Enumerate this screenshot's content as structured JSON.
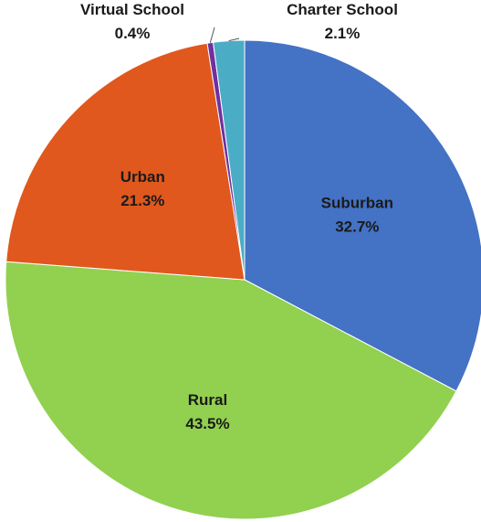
{
  "chart_data": {
    "type": "pie",
    "title": "",
    "slices": [
      {
        "label": "Suburban",
        "value": 32.7,
        "value_label": "32.7%",
        "color": "#4472c4",
        "label_position": "inside"
      },
      {
        "label": "Rural",
        "value": 43.5,
        "value_label": "43.5%",
        "color": "#92d050",
        "label_position": "inside"
      },
      {
        "label": "Urban",
        "value": 21.3,
        "value_label": "21.3%",
        "color": "#e0581d",
        "label_position": "inside"
      },
      {
        "label": "Virtual School",
        "value": 0.4,
        "value_label": "0.4%",
        "color": "#7030a0",
        "label_position": "outside"
      },
      {
        "label": "Charter School",
        "value": 2.1,
        "value_label": "2.1%",
        "color": "#4bacc6",
        "label_position": "outside"
      }
    ],
    "start_angle": "12 o'clock",
    "direction": "clockwise",
    "legend": "none"
  }
}
